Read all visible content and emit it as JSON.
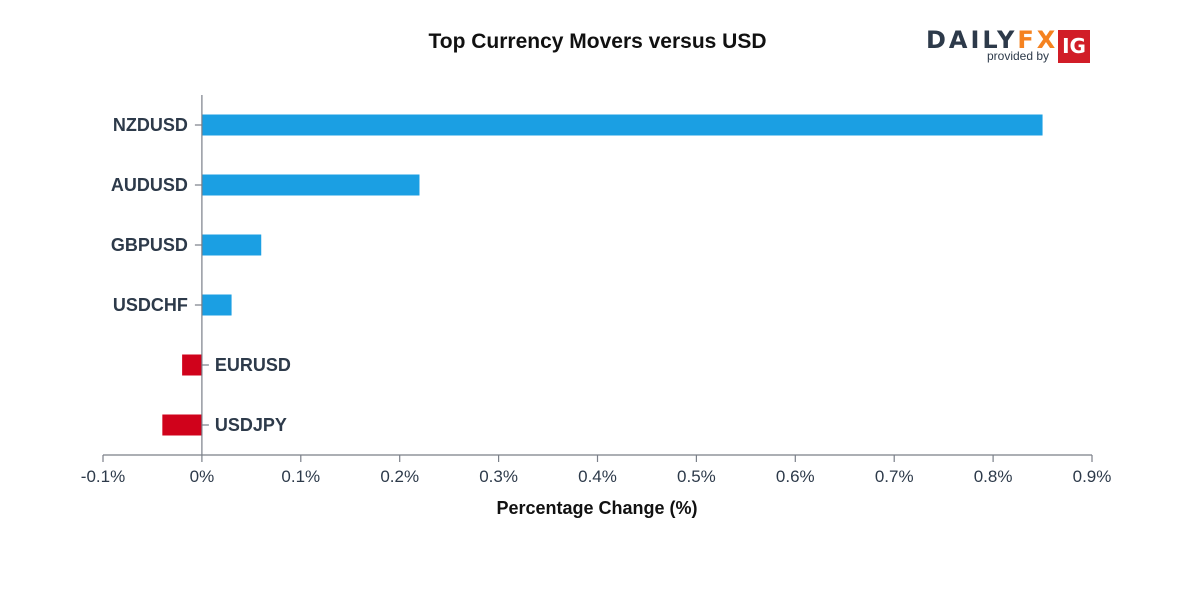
{
  "header": {
    "title": "Top Currency Movers versus USD"
  },
  "logo": {
    "word_daily": "DAILY",
    "word_fx": "FX",
    "provided_by": "provided by",
    "badge": "IG"
  },
  "colors": {
    "positive": "#1b9fe3",
    "negative": "#d0021b",
    "axis": "#7a7f88",
    "text": "#2d3a4a"
  },
  "chart_data": {
    "type": "bar",
    "orientation": "horizontal",
    "title": "Top Currency Movers versus USD",
    "xlabel": "Percentage Change (%)",
    "ylabel": "",
    "categories": [
      "NZDUSD",
      "AUDUSD",
      "GBPUSD",
      "USDCHF",
      "EURUSD",
      "USDJPY"
    ],
    "values": [
      0.85,
      0.22,
      0.06,
      0.03,
      -0.02,
      -0.04
    ],
    "xlim": [
      -0.1,
      0.9
    ],
    "xticks": [
      -0.1,
      0,
      0.1,
      0.2,
      0.3,
      0.4,
      0.5,
      0.6,
      0.7,
      0.8,
      0.9
    ],
    "xtick_labels": [
      "-0.1%",
      "0%",
      "0.1%",
      "0.2%",
      "0.3%",
      "0.4%",
      "0.5%",
      "0.6%",
      "0.7%",
      "0.8%",
      "0.9%"
    ],
    "grid": false,
    "legend": "none"
  }
}
